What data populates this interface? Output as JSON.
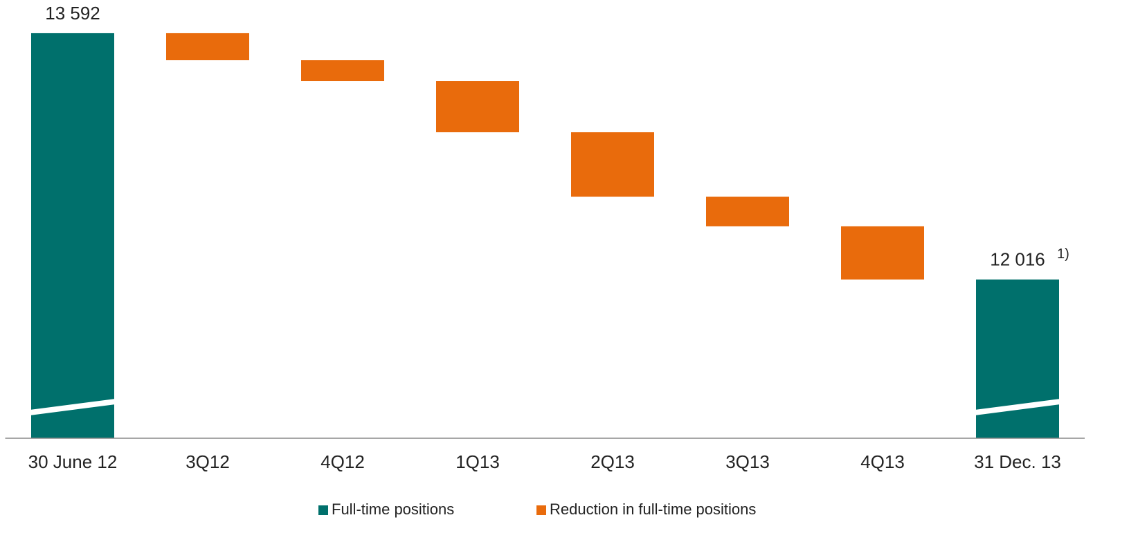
{
  "chart_data": {
    "type": "waterfall",
    "categories": [
      "30 June 12",
      "3Q12",
      "4Q12",
      "1Q13",
      "2Q13",
      "3Q13",
      "4Q13",
      "31 Dec. 13"
    ],
    "series": [
      {
        "name": "Full-time positions",
        "color": "#00706c",
        "values": [
          13592,
          null,
          null,
          null,
          null,
          null,
          null,
          12016
        ],
        "value_labels": [
          "13 592",
          null,
          null,
          null,
          null,
          null,
          null,
          "12 016"
        ]
      },
      {
        "name": "Reduction in full-time positions",
        "color": "#e96b0c",
        "values": [
          null,
          173,
          133,
          328,
          412,
          190,
          340,
          null
        ]
      }
    ],
    "annotations": [
      "1)"
    ],
    "ylim": [
      11000,
      13800
    ],
    "legend": "bottom"
  }
}
